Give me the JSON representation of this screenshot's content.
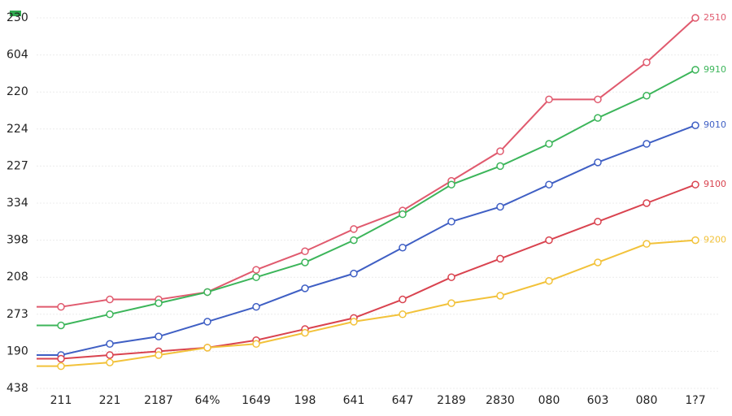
{
  "chart_data": {
    "type": "line",
    "categories": [
      "211",
      "221",
      "2187",
      "64%",
      "1649",
      "198",
      "641",
      "647",
      "2189",
      "2830",
      "080",
      "603",
      "080",
      "1?7"
    ],
    "series": [
      {
        "name": "2510",
        "color": "#e05a6e",
        "values": [
          2.2,
          2.4,
          2.4,
          2.6,
          3.2,
          3.7,
          4.3,
          4.8,
          5.6,
          6.4,
          7.8,
          7.8,
          8.8,
          10.0
        ]
      },
      {
        "name": "9910",
        "color": "#3cb55a",
        "values": [
          1.7,
          2.0,
          2.3,
          2.6,
          3.0,
          3.4,
          4.0,
          4.7,
          5.5,
          6.0,
          6.6,
          7.3,
          7.9,
          8.6
        ]
      },
      {
        "name": "9010",
        "color": "#3f5fc4",
        "values": [
          0.9,
          1.2,
          1.4,
          1.8,
          2.2,
          2.7,
          3.1,
          3.8,
          4.5,
          4.9,
          5.5,
          6.1,
          6.6,
          7.1
        ]
      },
      {
        "name": "9100",
        "color": "#d9434f",
        "values": [
          0.8,
          0.9,
          1.0,
          1.1,
          1.3,
          1.6,
          1.9,
          2.4,
          3.0,
          3.5,
          4.0,
          4.5,
          5.0,
          5.5
        ]
      },
      {
        "name": "9200",
        "color": "#f2c23a",
        "values": [
          0.6,
          0.7,
          0.9,
          1.1,
          1.2,
          1.5,
          1.8,
          2.0,
          2.3,
          2.5,
          2.9,
          3.4,
          3.9,
          4.0
        ]
      }
    ],
    "ylim": [
      0,
      10
    ],
    "yticks": [
      {
        "value": 0,
        "label": "438"
      },
      {
        "value": 1,
        "label": "190"
      },
      {
        "value": 2,
        "label": "273"
      },
      {
        "value": 3,
        "label": "208"
      },
      {
        "value": 4,
        "label": "398"
      },
      {
        "value": 5,
        "label": "334"
      },
      {
        "value": 6,
        "label": "227"
      },
      {
        "value": 7,
        "label": "224"
      },
      {
        "value": 8,
        "label": "220"
      },
      {
        "value": 9,
        "label": "604"
      },
      {
        "value": 10,
        "label": "230"
      }
    ],
    "grid": true
  }
}
